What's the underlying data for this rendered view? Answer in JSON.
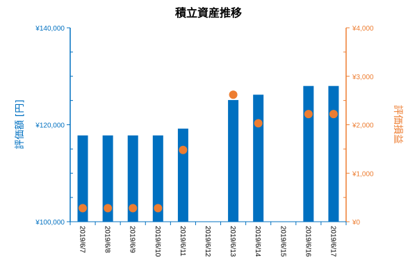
{
  "chart_data": {
    "type": "bar",
    "title": "積立資産推移",
    "ylabel": "評価額 [円]",
    "y2label": "評価損益",
    "categories": [
      "2019/6/7",
      "2019/6/8",
      "2019/6/9",
      "2019/6/10",
      "2019/6/11",
      "2019/6/12",
      "2019/6/13",
      "2019/6/14",
      "2019/6/15",
      "2019/6/16",
      "2019/6/17"
    ],
    "ylim": [
      100000,
      140000
    ],
    "y_ticks": [
      100000,
      120000,
      140000
    ],
    "y_tick_labels": [
      "¥100,000",
      "¥120,000",
      "¥140,000"
    ],
    "y2lim": [
      0,
      4000
    ],
    "y2_ticks": [
      0,
      1000,
      2000,
      3000,
      4000
    ],
    "y2_tick_labels": [
      "¥0",
      "¥1,000",
      "¥2,000",
      "¥3,000",
      "¥4,000"
    ],
    "series": [
      {
        "type": "bar",
        "axis": "left",
        "color": "#0070c0",
        "values": [
          117800,
          117800,
          117800,
          117800,
          119200,
          null,
          125100,
          126200,
          null,
          128000,
          128000
        ]
      },
      {
        "type": "scatter",
        "axis": "right",
        "color": "#ed7d31",
        "values": [
          280,
          280,
          280,
          280,
          1480,
          null,
          2620,
          2030,
          null,
          2220,
          2220
        ]
      }
    ],
    "grid": false,
    "legend": "none"
  }
}
